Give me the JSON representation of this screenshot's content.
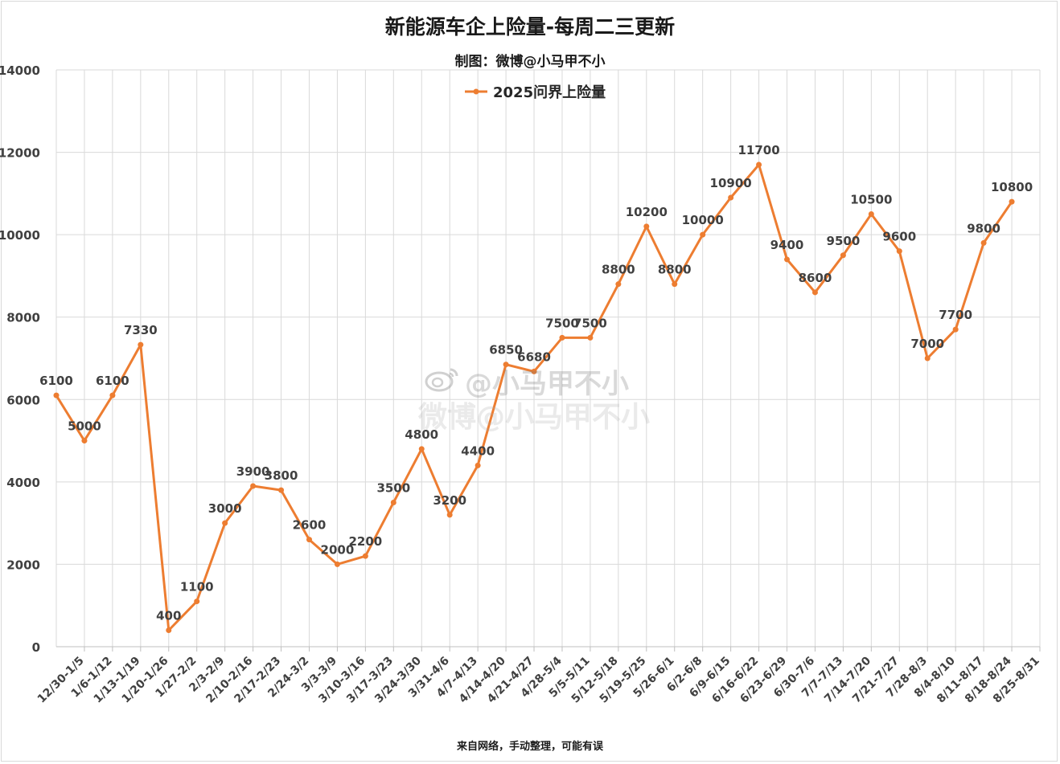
{
  "header": {
    "title": "新能源车企上险量-每周二三更新",
    "subtitle": "制图：微博@小马甲不小"
  },
  "footer": {
    "note": "来自网络，手动整理，可能有误"
  },
  "watermark": {
    "brand_line": "@小马甲不小",
    "line2": "微博@小马甲不小",
    "icon": "weibo-logo-icon"
  },
  "colors": {
    "series": "#ED7D31",
    "grid": "#d9d9d9",
    "text": "#404040"
  },
  "chart_data": {
    "type": "line",
    "title": "新能源车企上险量-每周二三更新",
    "subtitle": "制图：微博@小马甲不小",
    "xlabel": "",
    "ylabel": "",
    "ylim": [
      0,
      14000
    ],
    "yticks": [
      0,
      2000,
      4000,
      6000,
      8000,
      10000,
      12000,
      14000
    ],
    "grid": true,
    "legend": "top-center",
    "categories": [
      "12/30-1/5",
      "1/6-1/12",
      "1/13-1/19",
      "1/20-1/26",
      "1/27-2/2",
      "2/3-2/9",
      "2/10-2/16",
      "2/17-2/23",
      "2/24-3/2",
      "3/3-3/9",
      "3/10-3/16",
      "3/17-3/23",
      "3/24-3/30",
      "3/31-4/6",
      "4/7-4/13",
      "4/14-4/20",
      "4/21-4/27",
      "4/28-5/4",
      "5/5-5/11",
      "5/12-5/18",
      "5/19-5/25",
      "5/26-6/1",
      "6/2-6/8",
      "6/9-6/15",
      "6/16-6/22",
      "6/23-6/29",
      "6/30-7/6",
      "7/7-7/13",
      "7/14-7/20",
      "7/21-7/27",
      "7/28-8/3",
      "8/4-8/10",
      "8/11-8/17",
      "8/18-8/24",
      "8/25-8/31"
    ],
    "series": [
      {
        "name": "2025问界上险量",
        "color": "#ED7D31",
        "values": [
          6100,
          5000,
          6100,
          7330,
          400,
          1100,
          3000,
          3900,
          3800,
          2600,
          2000,
          2200,
          3500,
          4800,
          3200,
          4400,
          6850,
          6680,
          7500,
          7500,
          8800,
          10200,
          8800,
          10000,
          10900,
          11700,
          9400,
          8600,
          9500,
          10500,
          9600,
          7000,
          7700,
          9800,
          10800
        ]
      }
    ]
  }
}
